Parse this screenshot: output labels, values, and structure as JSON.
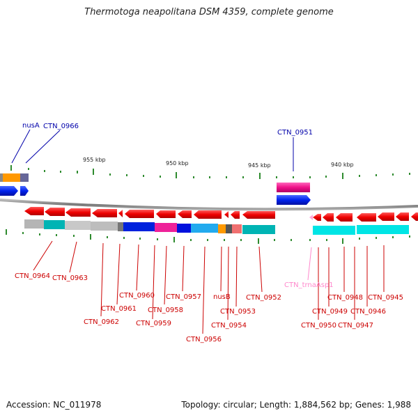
{
  "title": "Thermotoga neapolitana DSM 4359, complete genome",
  "accession": "Accession: NC_011978",
  "summary": "Topology: circular; Length: 1,884,562 bp; Genes: 1,988",
  "colors": {
    "gene_red": "#ee0000",
    "label_red": "#cc0000",
    "label_blue": "#0000aa",
    "label_pink": "#ff88cc",
    "axis_gray": "#888888",
    "tick_green": "#2e8b2e"
  },
  "scale": {
    "ticks": [
      "955 kbp",
      "950 kbp",
      "945 kbp",
      "940 kbp"
    ]
  },
  "genes_top": [
    {
      "name": "nusA",
      "color": "blue"
    },
    {
      "name": "CTN_0966",
      "color": "blue"
    },
    {
      "name": "CTN_0951",
      "color": "blue"
    }
  ],
  "genes_bottom": [
    "CTN_0964",
    "CTN_0963",
    "CTN_0962",
    "CTN_0961",
    "CTN_0960",
    "CTN_0959",
    "CTN_0958",
    "CTN_0957",
    "CTN_0956",
    "nusB",
    "CTN_0954",
    "CTN_0953",
    "CTN_0952",
    "CTN_trnaAsp1",
    "CTN_0950",
    "CTN_0949",
    "CTN_0948",
    "CTN_0947",
    "CTN_0946",
    "CTN_0945"
  ]
}
